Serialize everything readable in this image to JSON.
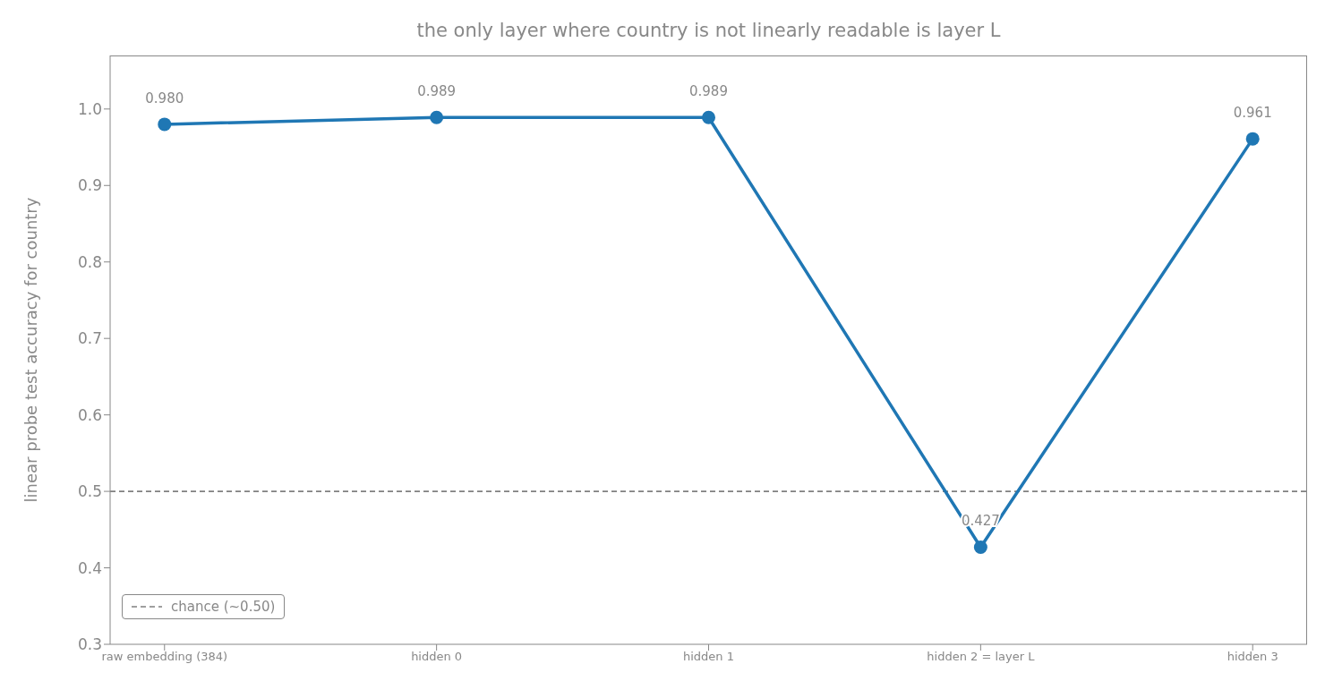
{
  "chart_data": {
    "type": "line",
    "title": "the only layer where country is not linearly readable is layer L",
    "ylabel": "linear probe test accuracy for country",
    "categories": [
      "raw embedding (384)",
      "hidden 0",
      "hidden 1",
      "hidden 2 = layer L",
      "hidden 3"
    ],
    "series": [
      {
        "color": "#1f77b4",
        "values": [
          0.98,
          0.989,
          0.989,
          0.427,
          0.961
        ],
        "value_labels": [
          "0.980",
          "0.989",
          "0.989",
          "0.427",
          "0.961"
        ]
      }
    ],
    "ylim": [
      0.3,
      1.07
    ],
    "yticks": [
      0.3,
      0.4,
      0.5,
      0.6,
      0.7,
      0.8,
      0.9,
      {
        "value": 1,
        "label": "1.0"
      }
    ],
    "ref_lines": [
      {
        "axis": "y",
        "value": 0.5,
        "label": "chance (~0.50)",
        "color": "#808080",
        "line_style": "dashed"
      }
    ],
    "legend": "bottom left",
    "grid": false,
    "marker": "circle",
    "line_style": "solid"
  }
}
